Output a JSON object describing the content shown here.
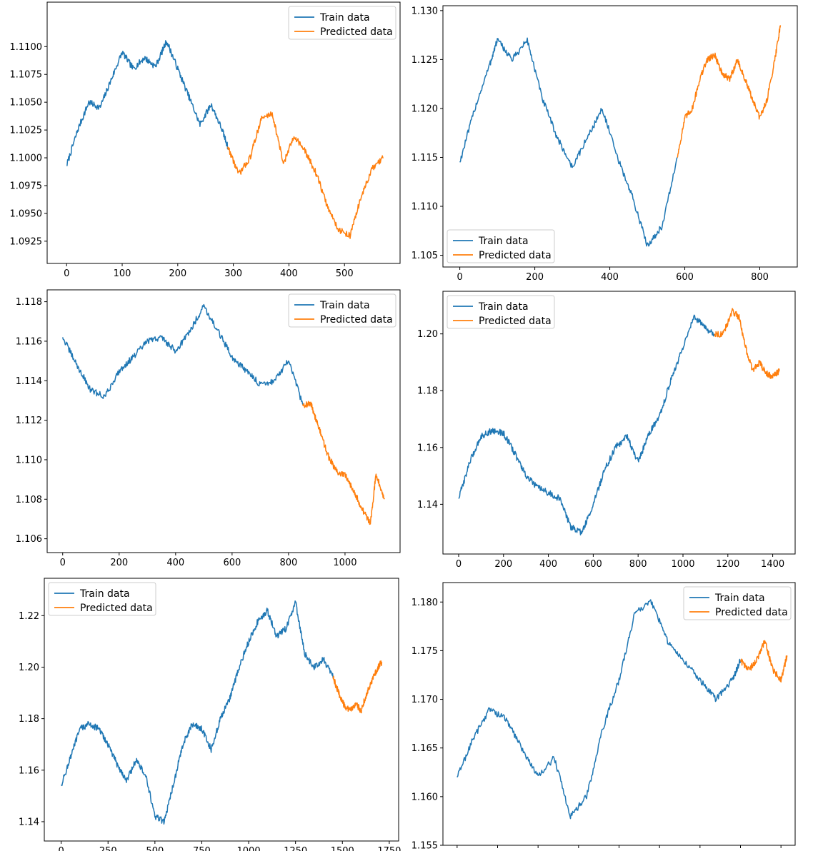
{
  "colors": {
    "train": "#1f77b4",
    "predicted": "#ff7f0e"
  },
  "chart_data": [
    {
      "type": "line",
      "legend_position": "top-right",
      "xlim": [
        -35,
        600
      ],
      "ylim": [
        1.0905,
        1.114
      ],
      "xticks": [
        {
          "v": 0,
          "label": "0"
        },
        {
          "v": 100,
          "label": "100"
        },
        {
          "v": 200,
          "label": "200"
        },
        {
          "v": 300,
          "label": "300"
        },
        {
          "v": 400,
          "label": "400"
        },
        {
          "v": 500,
          "label": "500"
        }
      ],
      "yticks": [
        {
          "v": 1.0925,
          "label": "1.0925"
        },
        {
          "v": 1.095,
          "label": "1.0950"
        },
        {
          "v": 1.0975,
          "label": "1.0975"
        },
        {
          "v": 1.1,
          "label": "1.1000"
        },
        {
          "v": 1.1025,
          "label": "1.1025"
        },
        {
          "v": 1.105,
          "label": "1.1050"
        },
        {
          "v": 1.1075,
          "label": "1.1075"
        },
        {
          "v": 1.11,
          "label": "1.1100"
        }
      ],
      "series": [
        {
          "name": "Train data",
          "x": [
            0,
            20,
            40,
            60,
            80,
            100,
            120,
            140,
            160,
            180,
            200,
            220,
            240,
            260,
            280,
            290
          ],
          "y": [
            1.0993,
            1.1025,
            1.105,
            1.1045,
            1.107,
            1.1095,
            1.108,
            1.109,
            1.1082,
            1.1105,
            1.108,
            1.1055,
            1.103,
            1.1048,
            1.1025,
            1.101
          ]
        },
        {
          "name": "Predicted data",
          "x": [
            290,
            310,
            330,
            350,
            370,
            390,
            410,
            430,
            450,
            470,
            490,
            510,
            530,
            550,
            570
          ],
          "y": [
            1.101,
            1.0985,
            1.1,
            1.1035,
            1.104,
            1.0995,
            1.102,
            1.1005,
            1.0985,
            1.0955,
            1.0935,
            1.093,
            1.0965,
            1.099,
            1.1
          ]
        }
      ]
    },
    {
      "type": "line",
      "legend_position": "bottom-left",
      "xlim": [
        -45,
        900
      ],
      "ylim": [
        1.1038,
        1.1305
      ],
      "xticks": [
        {
          "v": 0,
          "label": "0"
        },
        {
          "v": 200,
          "label": "200"
        },
        {
          "v": 400,
          "label": "400"
        },
        {
          "v": 600,
          "label": "600"
        },
        {
          "v": 800,
          "label": "800"
        }
      ],
      "yticks": [
        {
          "v": 1.105,
          "label": "1.105"
        },
        {
          "v": 1.11,
          "label": "1.110"
        },
        {
          "v": 1.115,
          "label": "1.115"
        },
        {
          "v": 1.12,
          "label": "1.120"
        },
        {
          "v": 1.125,
          "label": "1.125"
        },
        {
          "v": 1.13,
          "label": "1.130"
        }
      ],
      "series": [
        {
          "name": "Train data",
          "x": [
            0,
            40,
            80,
            100,
            140,
            180,
            220,
            260,
            300,
            340,
            380,
            420,
            460,
            500,
            540,
            580
          ],
          "y": [
            1.1145,
            1.12,
            1.1245,
            1.127,
            1.125,
            1.127,
            1.121,
            1.117,
            1.114,
            1.117,
            1.12,
            1.115,
            1.111,
            1.106,
            1.108,
            1.115
          ]
        },
        {
          "name": "Predicted data",
          "x": [
            580,
            600,
            620,
            640,
            660,
            680,
            700,
            720,
            740,
            760,
            780,
            800,
            820,
            840,
            855
          ],
          "y": [
            1.115,
            1.119,
            1.12,
            1.123,
            1.125,
            1.1255,
            1.1235,
            1.123,
            1.125,
            1.123,
            1.121,
            1.119,
            1.121,
            1.125,
            1.1285
          ]
        }
      ]
    },
    {
      "type": "line",
      "legend_position": "top-right",
      "xlim": [
        -55,
        1195
      ],
      "ylim": [
        1.1053,
        1.1186
      ],
      "xticks": [
        {
          "v": 0,
          "label": "0"
        },
        {
          "v": 200,
          "label": "200"
        },
        {
          "v": 400,
          "label": "400"
        },
        {
          "v": 600,
          "label": "600"
        },
        {
          "v": 800,
          "label": "800"
        },
        {
          "v": 1000,
          "label": "1000"
        }
      ],
      "yticks": [
        {
          "v": 1.106,
          "label": "1.106"
        },
        {
          "v": 1.108,
          "label": "1.108"
        },
        {
          "v": 1.11,
          "label": "1.110"
        },
        {
          "v": 1.112,
          "label": "1.112"
        },
        {
          "v": 1.114,
          "label": "1.114"
        },
        {
          "v": 1.116,
          "label": "1.116"
        },
        {
          "v": 1.118,
          "label": "1.118"
        }
      ],
      "series": [
        {
          "name": "Train data",
          "x": [
            0,
            50,
            100,
            150,
            200,
            250,
            300,
            350,
            400,
            450,
            500,
            550,
            600,
            650,
            700,
            750,
            800,
            850
          ],
          "y": [
            1.1162,
            1.1148,
            1.1135,
            1.1132,
            1.1145,
            1.1152,
            1.116,
            1.1162,
            1.1155,
            1.1165,
            1.1178,
            1.1165,
            1.1152,
            1.1145,
            1.1138,
            1.114,
            1.115,
            1.1128
          ]
        },
        {
          "name": "Predicted data",
          "x": [
            850,
            880,
            910,
            940,
            970,
            1000,
            1030,
            1060,
            1090,
            1110,
            1140
          ],
          "y": [
            1.1128,
            1.1128,
            1.1115,
            1.1102,
            1.1094,
            1.1092,
            1.1085,
            1.1075,
            1.1068,
            1.1093,
            1.108
          ]
        }
      ]
    },
    {
      "type": "line",
      "legend_position": "top-left",
      "xlim": [
        -70,
        1500
      ],
      "ylim": [
        1.1225,
        1.215
      ],
      "xticks": [
        {
          "v": 0,
          "label": "0"
        },
        {
          "v": 200,
          "label": "200"
        },
        {
          "v": 400,
          "label": "400"
        },
        {
          "v": 600,
          "label": "600"
        },
        {
          "v": 800,
          "label": "800"
        },
        {
          "v": 1000,
          "label": "1000"
        },
        {
          "v": 1200,
          "label": "1200"
        },
        {
          "v": 1400,
          "label": "1400"
        }
      ],
      "yticks": [
        {
          "v": 1.14,
          "label": "1.14"
        },
        {
          "v": 1.16,
          "label": "1.16"
        },
        {
          "v": 1.18,
          "label": "1.18"
        },
        {
          "v": 1.2,
          "label": "1.20"
        }
      ],
      "series": [
        {
          "name": "Train data",
          "x": [
            0,
            50,
            100,
            150,
            200,
            250,
            300,
            350,
            400,
            450,
            500,
            550,
            600,
            650,
            700,
            750,
            800,
            850,
            900,
            950,
            1000,
            1050,
            1100,
            1140
          ],
          "y": [
            1.142,
            1.155,
            1.164,
            1.166,
            1.165,
            1.158,
            1.15,
            1.146,
            1.144,
            1.142,
            1.132,
            1.13,
            1.14,
            1.152,
            1.16,
            1.164,
            1.155,
            1.165,
            1.172,
            1.185,
            1.195,
            1.206,
            1.202,
            1.2
          ]
        },
        {
          "name": "Predicted data",
          "x": [
            1140,
            1180,
            1220,
            1250,
            1280,
            1310,
            1340,
            1370,
            1400,
            1430
          ],
          "y": [
            1.2,
            1.2,
            1.208,
            1.206,
            1.195,
            1.187,
            1.19,
            1.186,
            1.185,
            1.187
          ]
        }
      ]
    },
    {
      "type": "line",
      "legend_position": "top-left",
      "xlim": [
        -90,
        1800
      ],
      "ylim": [
        1.1325,
        1.2345
      ],
      "xticks": [
        {
          "v": 0,
          "label": "0"
        },
        {
          "v": 250,
          "label": "250"
        },
        {
          "v": 500,
          "label": "500"
        },
        {
          "v": 750,
          "label": "750"
        },
        {
          "v": 1000,
          "label": "1000"
        },
        {
          "v": 1250,
          "label": "1250"
        },
        {
          "v": 1500,
          "label": "1500"
        },
        {
          "v": 1750,
          "label": "1750"
        }
      ],
      "yticks": [
        {
          "v": 1.14,
          "label": "1.14"
        },
        {
          "v": 1.16,
          "label": "1.16"
        },
        {
          "v": 1.18,
          "label": "1.18"
        },
        {
          "v": 1.2,
          "label": "1.20"
        },
        {
          "v": 1.22,
          "label": "1.22"
        }
      ],
      "series": [
        {
          "name": "Train data",
          "x": [
            0,
            50,
            100,
            150,
            200,
            250,
            300,
            350,
            400,
            450,
            500,
            550,
            600,
            650,
            700,
            750,
            800,
            850,
            900,
            950,
            1000,
            1050,
            1100,
            1150,
            1200,
            1250,
            1300,
            1350,
            1400,
            1450
          ],
          "y": [
            1.154,
            1.165,
            1.176,
            1.178,
            1.176,
            1.17,
            1.162,
            1.156,
            1.164,
            1.158,
            1.142,
            1.14,
            1.155,
            1.17,
            1.178,
            1.176,
            1.168,
            1.18,
            1.188,
            1.2,
            1.21,
            1.218,
            1.222,
            1.212,
            1.215,
            1.225,
            1.205,
            1.2,
            1.203,
            1.196
          ]
        },
        {
          "name": "Predicted data",
          "x": [
            1450,
            1480,
            1510,
            1540,
            1570,
            1600,
            1630,
            1660,
            1690,
            1710
          ],
          "y": [
            1.196,
            1.19,
            1.185,
            1.183,
            1.186,
            1.183,
            1.19,
            1.195,
            1.2,
            1.202
          ]
        }
      ]
    },
    {
      "type": "line",
      "legend_position": "top-right",
      "xlim": [
        -0.7,
        16.7
      ],
      "ylim": [
        1.155,
        1.182
      ],
      "xticks": [
        {
          "v": 0,
          "label": ""
        },
        {
          "v": 2,
          "label": ""
        },
        {
          "v": 4,
          "label": ""
        },
        {
          "v": 6,
          "label": ""
        },
        {
          "v": 8,
          "label": ""
        },
        {
          "v": 10,
          "label": ""
        },
        {
          "v": 12,
          "label": ""
        },
        {
          "v": 14,
          "label": ""
        },
        {
          "v": 16,
          "label": ""
        }
      ],
      "yticks": [
        {
          "v": 1.155,
          "label": "1.155"
        },
        {
          "v": 1.16,
          "label": "1.160"
        },
        {
          "v": 1.165,
          "label": "1.165"
        },
        {
          "v": 1.17,
          "label": "1.170"
        },
        {
          "v": 1.175,
          "label": "1.175"
        },
        {
          "v": 1.18,
          "label": "1.180"
        }
      ],
      "series": [
        {
          "name": "Train data",
          "x": [
            0,
            0.8,
            1.6,
            2.4,
            3.2,
            4.0,
            4.8,
            5.6,
            6.4,
            7.2,
            8.0,
            8.8,
            9.6,
            10.4,
            11.2,
            12.0,
            12.8,
            13.6,
            14.0
          ],
          "y": [
            1.162,
            1.166,
            1.169,
            1.168,
            1.165,
            1.162,
            1.164,
            1.158,
            1.16,
            1.167,
            1.172,
            1.179,
            1.18,
            1.176,
            1.174,
            1.172,
            1.17,
            1.172,
            1.174
          ]
        },
        {
          "name": "Predicted data",
          "x": [
            14.0,
            14.4,
            14.8,
            15.2,
            15.6,
            16.0,
            16.3
          ],
          "y": [
            1.174,
            1.173,
            1.174,
            1.176,
            1.173,
            1.172,
            1.1745
          ]
        }
      ]
    }
  ]
}
